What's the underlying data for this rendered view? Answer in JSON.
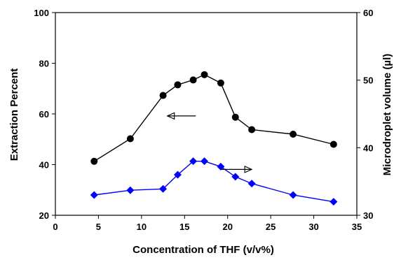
{
  "chart_data": {
    "type": "line",
    "title": "",
    "xlabel": "Concentration of THF (v/v%)",
    "ylabel": "Extraction Percent",
    "y2label": "Microdroplet volume (µl)",
    "xlim": [
      0,
      35
    ],
    "ylim": [
      20,
      100
    ],
    "y2lim": [
      30,
      60
    ],
    "xticks": [
      0,
      5,
      10,
      15,
      20,
      25,
      30,
      35
    ],
    "yticks": [
      20,
      40,
      60,
      80,
      100
    ],
    "y2ticks": [
      30,
      40,
      50,
      60
    ],
    "grid": false,
    "legend": "none",
    "series": [
      {
        "axis": "left",
        "marker": "circle",
        "color": "#000000",
        "x": [
          4.5,
          8.7,
          12.5,
          14.2,
          16.0,
          17.3,
          19.2,
          20.9,
          22.8,
          27.6,
          32.3
        ],
        "y": [
          41.3,
          50.2,
          67.3,
          71.5,
          73.4,
          75.5,
          72.2,
          58.7,
          53.8,
          52.0,
          48.0
        ]
      },
      {
        "axis": "right",
        "marker": "diamond",
        "color": "#0000ff",
        "x": [
          4.5,
          8.7,
          12.5,
          14.2,
          16.0,
          17.3,
          19.2,
          20.9,
          22.8,
          27.6,
          32.3
        ],
        "y": [
          33.0,
          33.7,
          33.9,
          36.0,
          38.0,
          38.0,
          37.2,
          35.7,
          34.7,
          33.0,
          32.0
        ]
      }
    ],
    "annotations": [
      {
        "type": "arrow",
        "direction": "left",
        "at_x": 16.3,
        "at_y": 59.2,
        "length_x": 3.3
      },
      {
        "type": "arrow",
        "direction": "right",
        "at_x": 19.2,
        "at_y": 38.1,
        "length_x": 3.6
      }
    ]
  }
}
